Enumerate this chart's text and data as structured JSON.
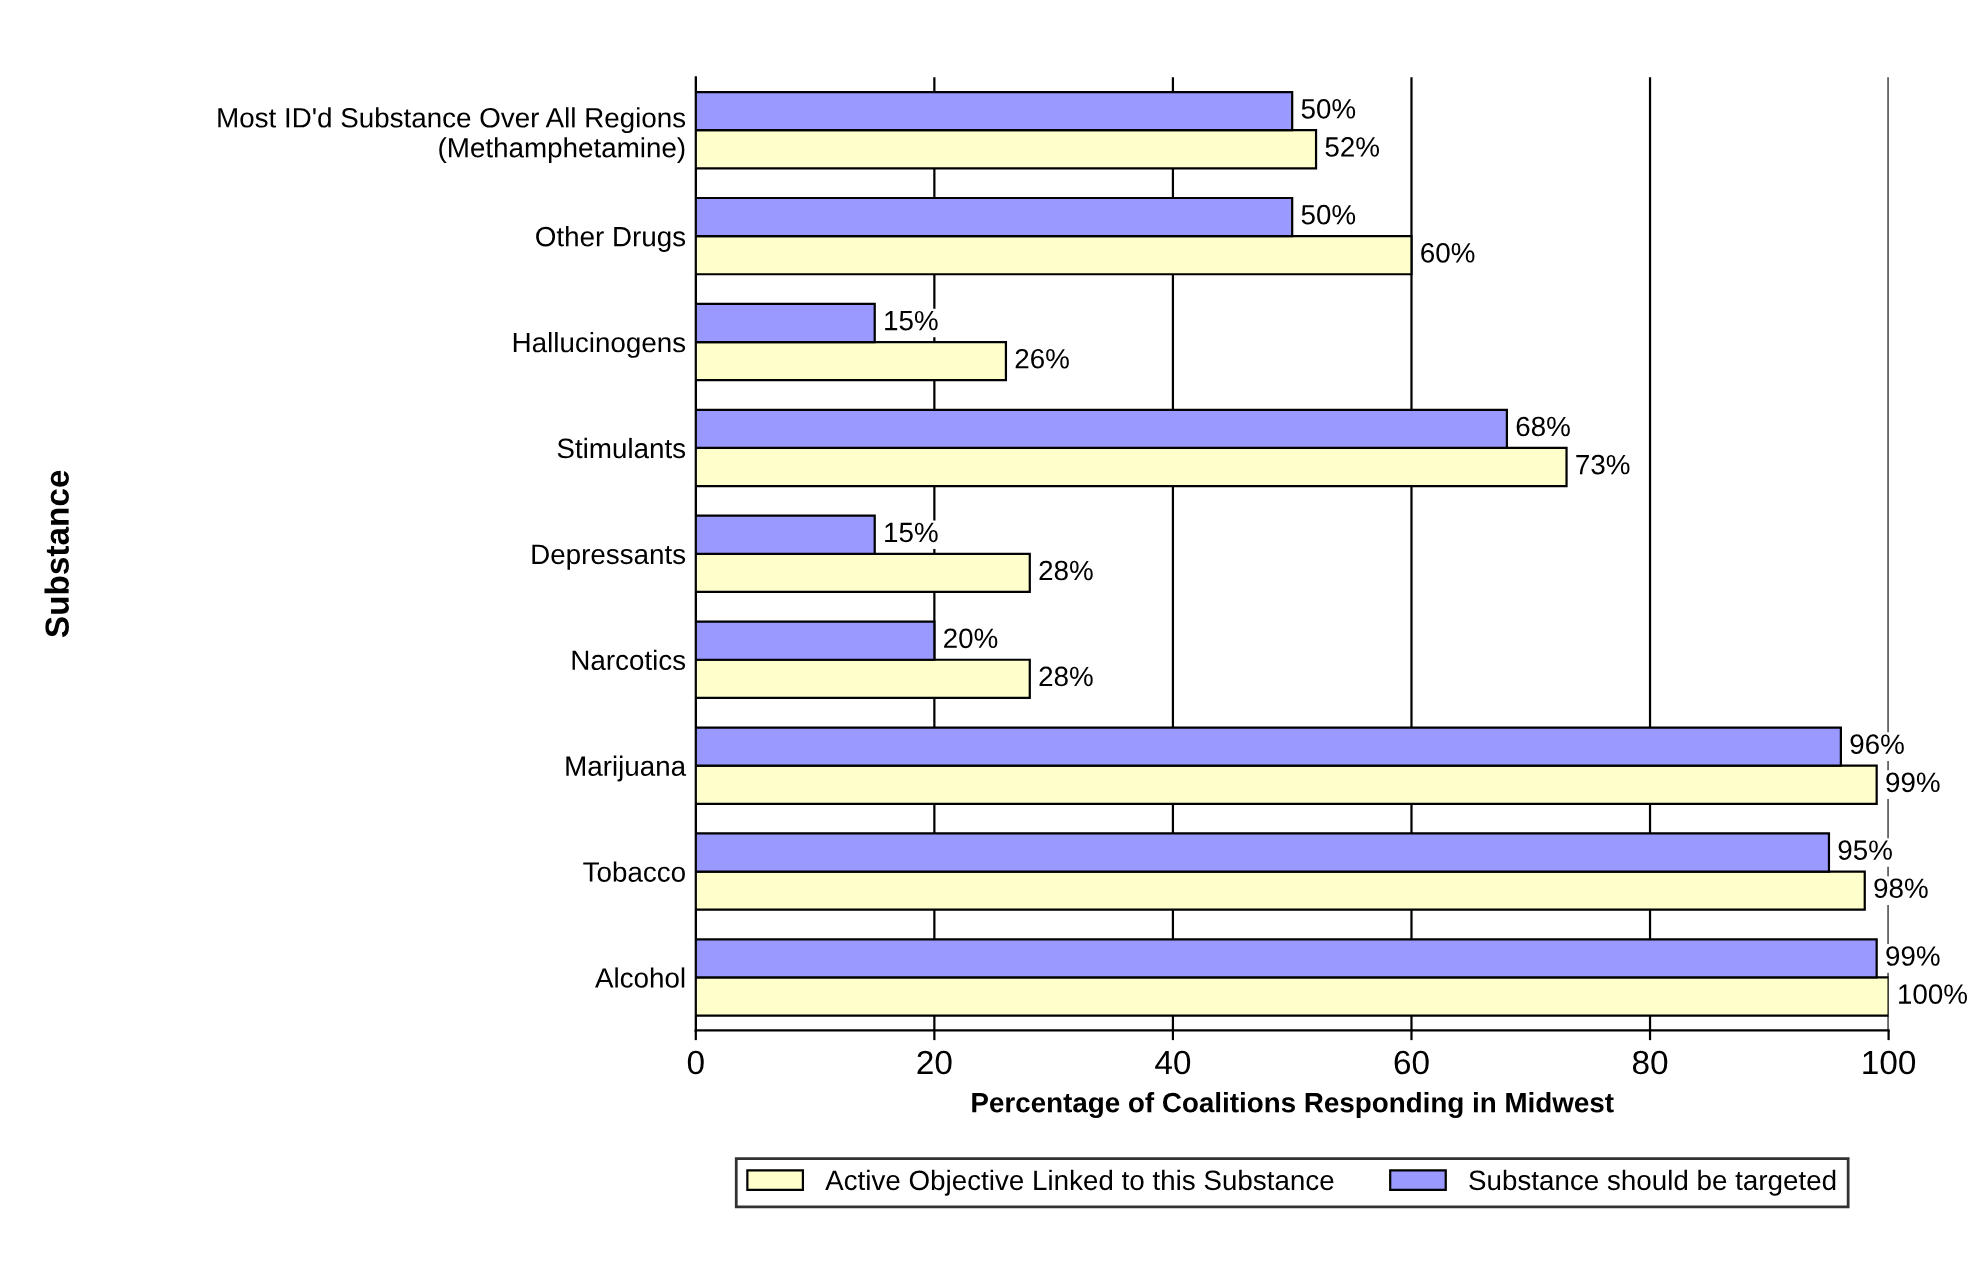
{
  "chart_data": {
    "type": "bar",
    "orientation": "horizontal",
    "xlabel": "Percentage of Coalitions Responding in Midwest",
    "ylabel": "Substance",
    "categories": [
      "Most ID'd Substance Over All Regions\n(Methamphetamine)",
      "Other Drugs",
      "Hallucinogens",
      "Stimulants",
      "Depressants",
      "Narcotics",
      "Marijuana",
      "Tobacco",
      "Alcohol"
    ],
    "series": [
      {
        "name": "Active Objective Linked to this Substance",
        "color": "#ffffcc",
        "values": [
          52,
          60,
          26,
          73,
          28,
          28,
          99,
          98,
          100
        ],
        "value_labels": [
          "52%",
          "60%",
          "26%",
          "73%",
          "28%",
          "28%",
          "99%",
          "98%",
          "100%"
        ]
      },
      {
        "name": "Substance should be targeted",
        "color": "#9999ff",
        "values": [
          50,
          50,
          15,
          68,
          15,
          20,
          96,
          95,
          99
        ],
        "value_labels": [
          "50%",
          "50%",
          "15%",
          "68%",
          "15%",
          "20%",
          "96%",
          "95%",
          "99%"
        ]
      }
    ],
    "xlim": [
      0,
      100
    ],
    "xticks": [
      0,
      20,
      40,
      60,
      80,
      100
    ],
    "grid": "x",
    "legend": "bottom"
  }
}
